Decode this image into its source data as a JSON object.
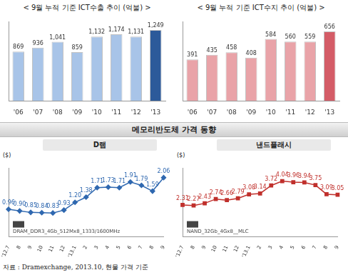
{
  "section_title": "메모리반도체 가격 동향",
  "source": "자료 : Dramexchange, 2013.10, 현물 가격 기준",
  "chart_data": [
    {
      "type": "bar",
      "title": "< 9월 누적 기준 ICT수출 추이 (억불) >",
      "categories": [
        "'06",
        "'07",
        "'08",
        "'09",
        "'10",
        "'11",
        "'12",
        "'13"
      ],
      "values": [
        869,
        936,
        1041,
        859,
        1132,
        1174,
        1131,
        1249
      ],
      "value_labels": [
        "869",
        "936",
        "1,041",
        "859",
        "1,132",
        "1,174",
        "1,131",
        "1,249"
      ],
      "colors": [
        "#a8c4e8",
        "#a8c4e8",
        "#a8c4e8",
        "#a8c4e8",
        "#a8c4e8",
        "#a8c4e8",
        "#a8c4e8",
        "#2c5a9a"
      ],
      "ylim": [
        0,
        1400
      ],
      "data_labels": true,
      "tick_labels": "x",
      "grid": false
    },
    {
      "type": "bar",
      "title": "< 9월 누적 기준 ICT수지 추이 (억불) >",
      "categories": [
        "'06",
        "'07",
        "'08",
        "'09",
        "'10",
        "'11",
        "'12",
        "'13"
      ],
      "values": [
        391,
        435,
        458,
        408,
        584,
        560,
        559,
        656
      ],
      "value_labels": [
        "391",
        "435",
        "458",
        "408",
        "584",
        "560",
        "559",
        "656"
      ],
      "colors": [
        "#e9a3a8",
        "#e9a3a8",
        "#e9a3a8",
        "#e9a3a8",
        "#e9a3a8",
        "#e9a3a8",
        "#e9a3a8",
        "#d45c67"
      ],
      "ylim": [
        0,
        750
      ],
      "data_labels": true,
      "tick_labels": "x",
      "grid": false
    },
    {
      "type": "line",
      "title": "D램",
      "y_label": "($)",
      "annotation": "DRAM_DDR3_4Gb_512Mx8_1333/1600MHz",
      "categories": [
        "'12.7",
        "8",
        "9",
        "10",
        "11",
        "12",
        "'13.1",
        "2",
        "3",
        "4",
        "5",
        "6",
        "7",
        "8",
        "9"
      ],
      "values": [
        0.96,
        0.9,
        0.85,
        0.84,
        0.83,
        0.93,
        1.2,
        1.38,
        1.71,
        1.73,
        1.71,
        1.91,
        1.79,
        1.59,
        2.06
      ],
      "value_labels": [
        "0.96",
        "0.90",
        "0.85",
        "0.84",
        "0.83",
        "0.93",
        "1.20",
        "1.38",
        "1.71",
        "1.73",
        "1.71",
        "1.91",
        "1.79",
        "1.59",
        "2.06"
      ],
      "color": "#2f68b0",
      "marker": "diamond",
      "ylim": [
        0,
        2.4
      ],
      "data_labels": true,
      "tick_labels": "x",
      "grid": false
    },
    {
      "type": "line",
      "title": "낸드플래시",
      "y_label": "($)",
      "annotation": "NAND_32Gb_4Gx8__MLC",
      "categories": [
        "'12.7",
        "8",
        "9",
        "10",
        "11",
        "12",
        "'13.1",
        "2",
        "3",
        "4",
        "5",
        "6",
        "7",
        "8",
        "9"
      ],
      "values": [
        2.31,
        2.27,
        2.43,
        2.74,
        2.66,
        2.79,
        3.08,
        3.14,
        3.72,
        4.04,
        3.96,
        3.94,
        3.75,
        3.09,
        3.05
      ],
      "value_labels": [
        "2.31",
        "2.27",
        "2.43",
        "2.74",
        "2.66",
        "2.79",
        "3.08",
        "3.14",
        "3.72",
        "4.04",
        "3.96",
        "3.94",
        "3.75",
        "3.09",
        "3.05"
      ],
      "color": "#c0302c",
      "marker": "square",
      "ylim": [
        0,
        5
      ],
      "data_labels": true,
      "tick_labels": "x",
      "grid": false
    }
  ]
}
